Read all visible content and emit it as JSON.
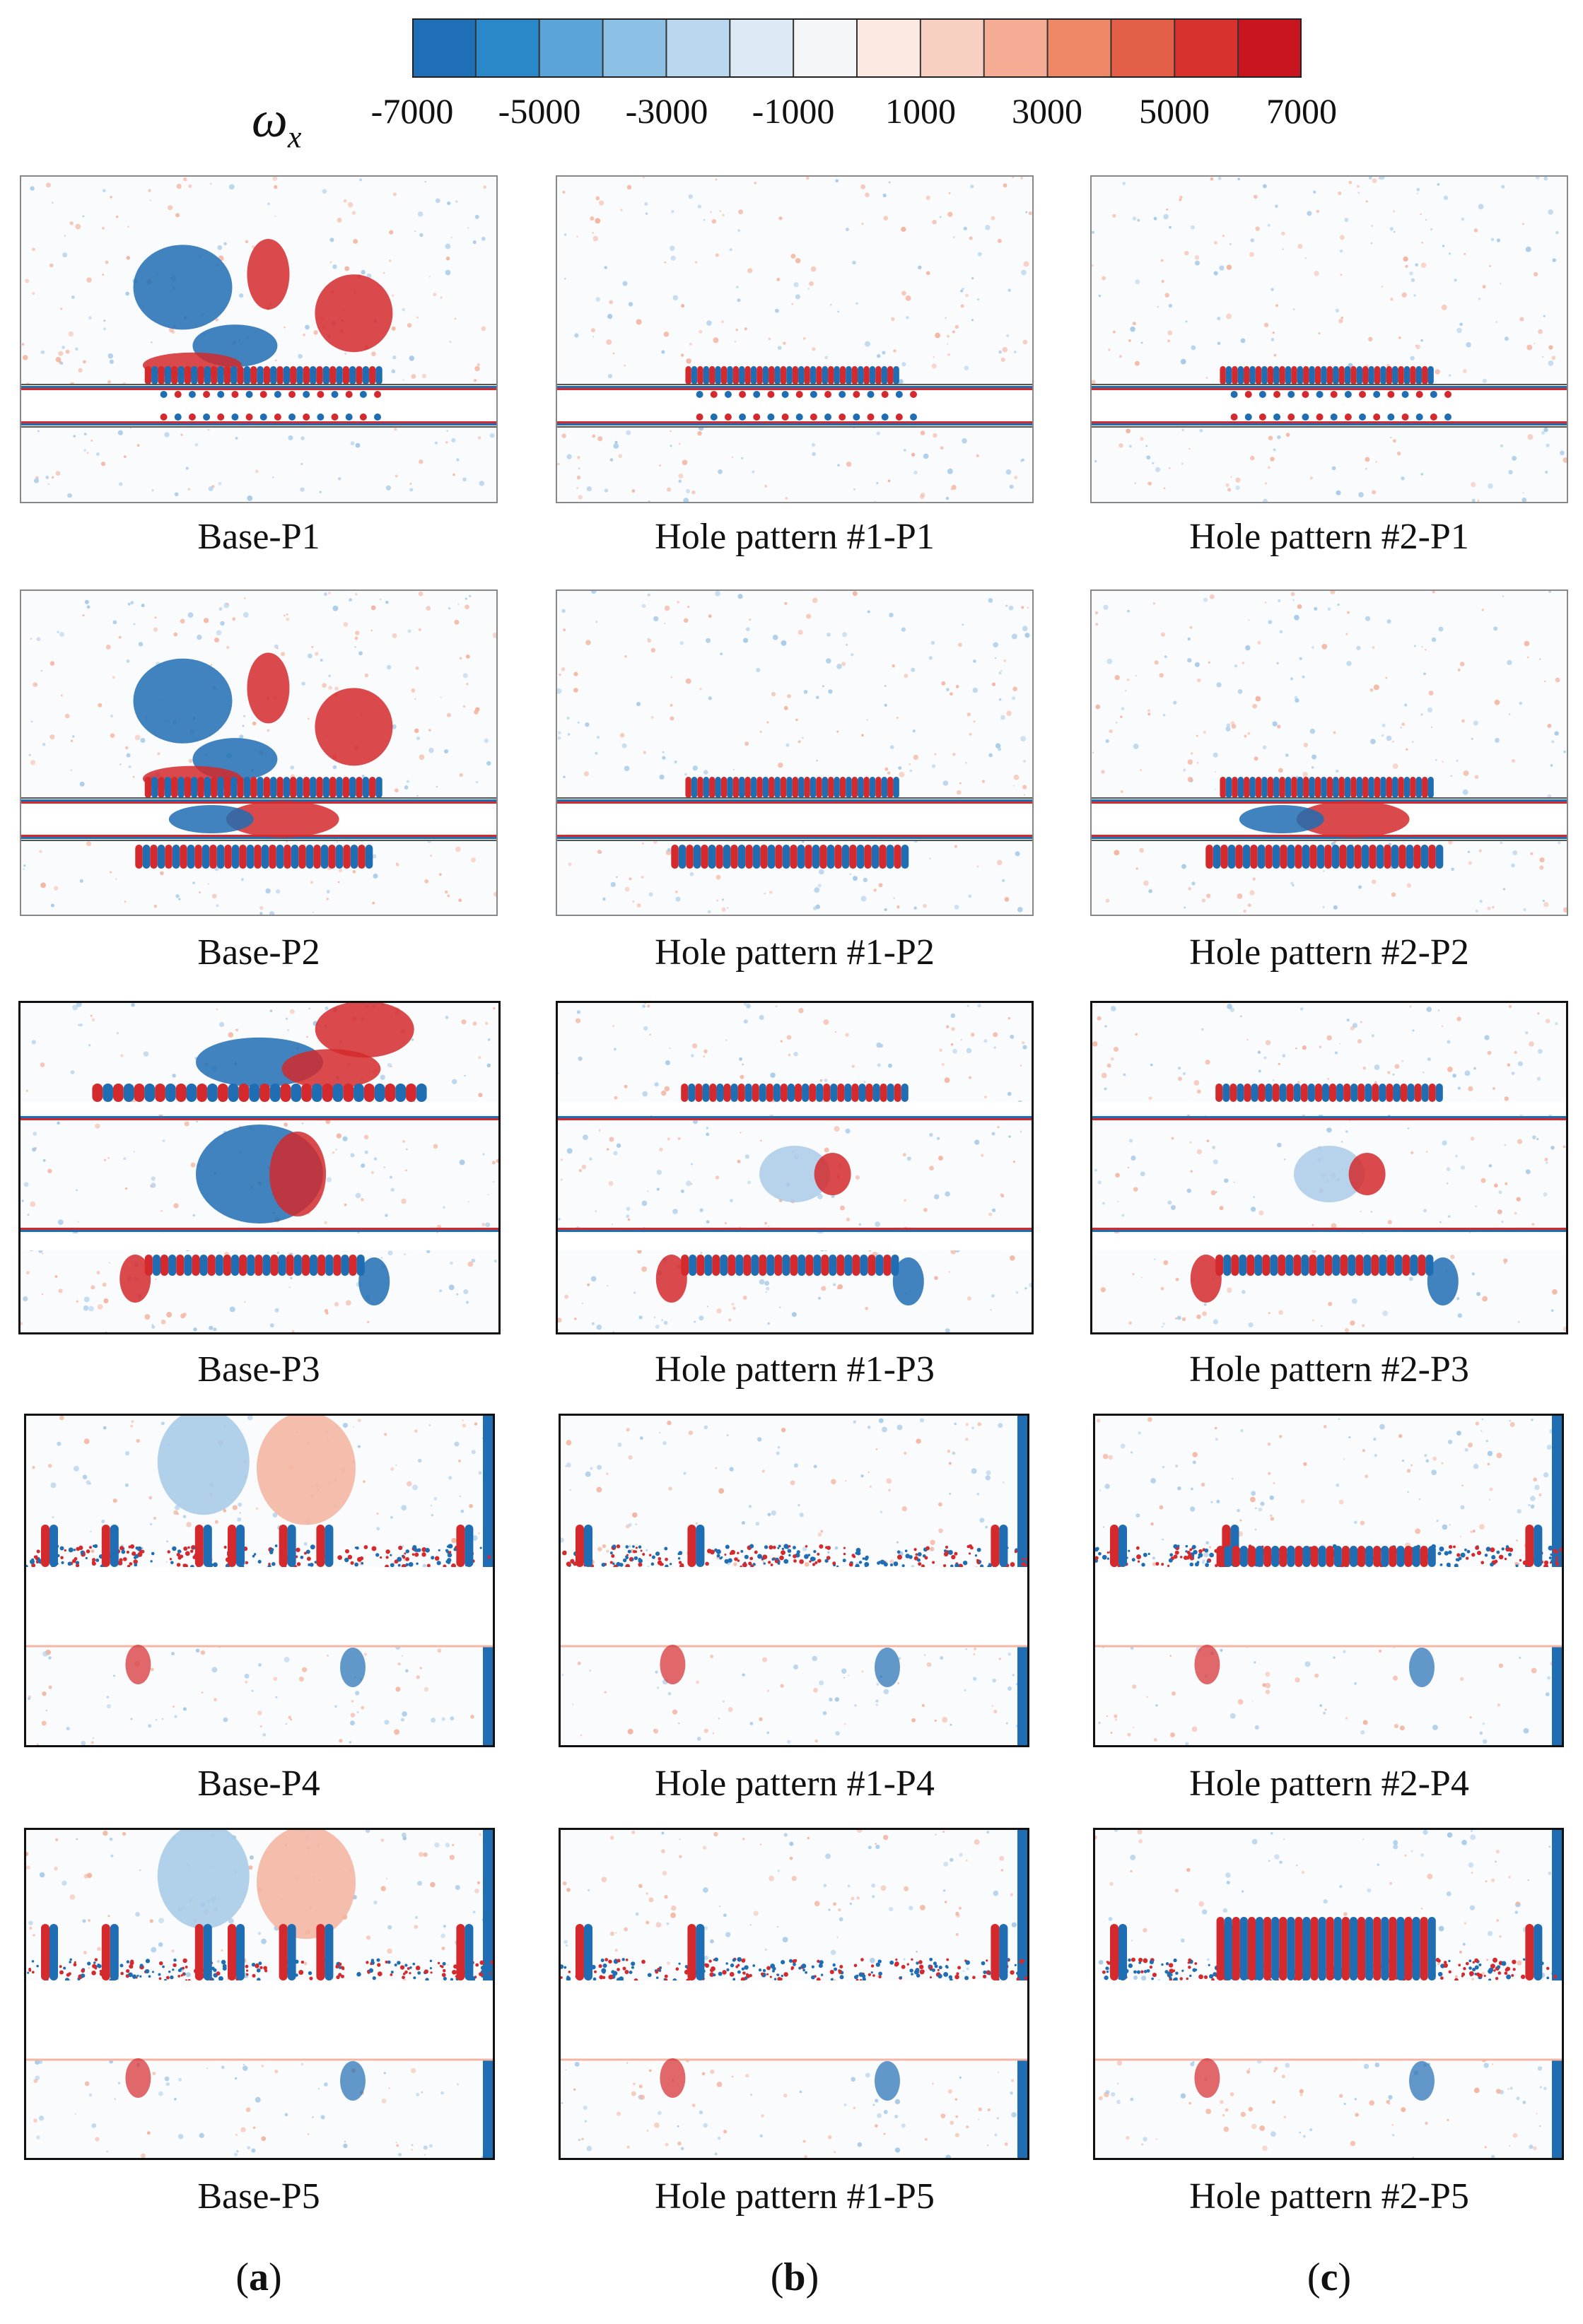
{
  "colorbar": {
    "symbol": "ω",
    "subscript": "x",
    "tick_labels": [
      "-7000",
      "-5000",
      "-3000",
      "-1000",
      "1000",
      "3000",
      "5000",
      "7000"
    ],
    "colors": [
      "#1e6fb5",
      "#2b88c8",
      "#5aa4d8",
      "#8cc0e5",
      "#b9d8ef",
      "#dde9f4",
      "#f4f6f8",
      "#fbe9e2",
      "#f8d0c1",
      "#f4ad94",
      "#ef8866",
      "#e45f47",
      "#d8322f",
      "#c9151f"
    ]
  },
  "captions": [
    [
      "Base-P1",
      "Hole pattern #1-P1",
      "Hole pattern #2-P1"
    ],
    [
      "Base-P2",
      "Hole pattern #1-P2",
      "Hole pattern #2-P2"
    ],
    [
      "Base-P3",
      "Hole pattern #1-P3",
      "Hole pattern #2-P3"
    ],
    [
      "Base-P4",
      "Hole pattern #1-P4",
      "Hole pattern #2-P4"
    ],
    [
      "Base-P5",
      "Hole pattern #1-P5",
      "Hole pattern #2-P5"
    ]
  ],
  "column_labels": [
    "a",
    "b",
    "c"
  ],
  "palette": {
    "blue": "#1f6db3",
    "red": "#d42a2d",
    "light_blue": "#a9cbe8",
    "light_red": "#f4b6a3"
  }
}
